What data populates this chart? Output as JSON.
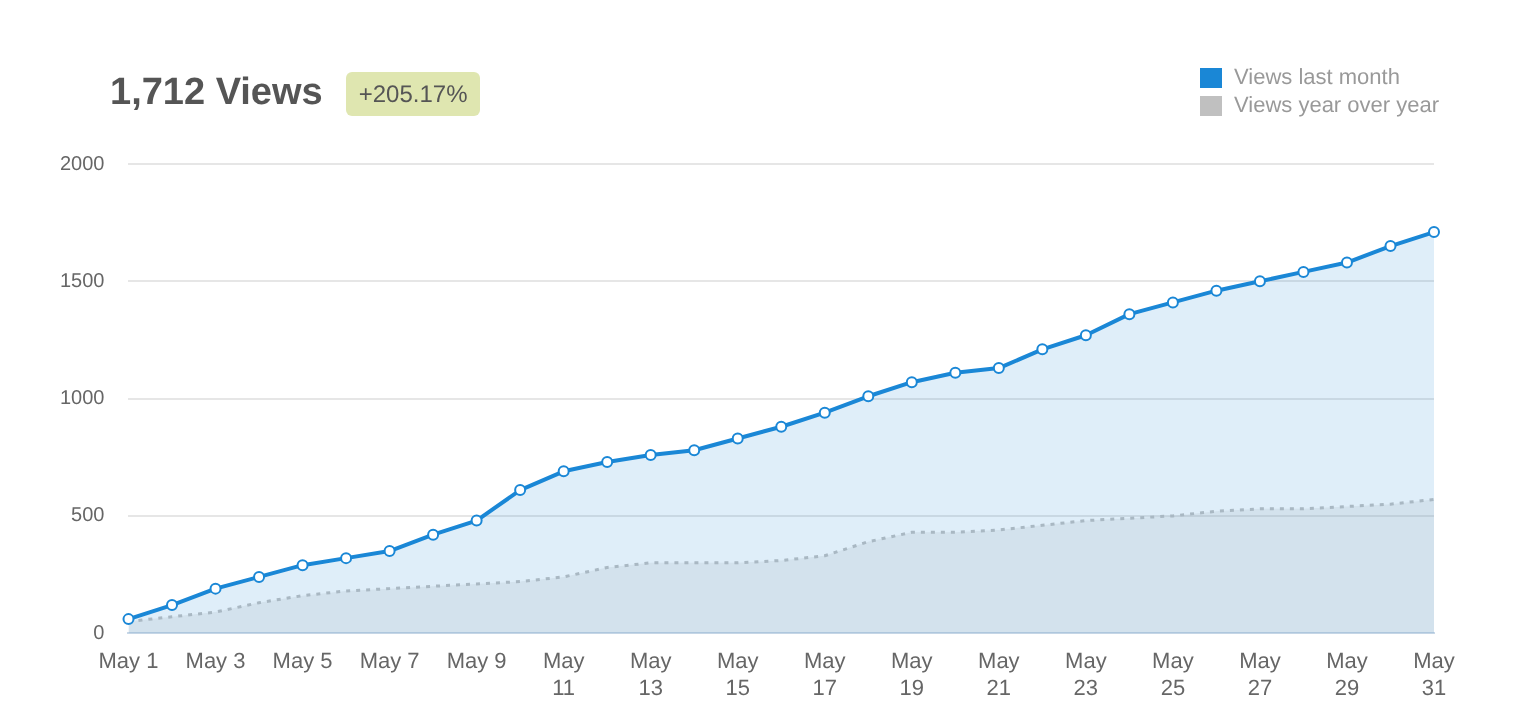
{
  "chart_data": {
    "type": "area",
    "title": "1,712 Views",
    "subtitle": "+205.17%",
    "categories": [
      "May 1",
      null,
      "May 3",
      null,
      "May 5",
      null,
      "May 7",
      null,
      "May 9",
      null,
      "May 11",
      null,
      "May 13",
      null,
      "May 15",
      null,
      "May 17",
      null,
      "May 19",
      null,
      "May 21",
      null,
      "May 23",
      null,
      "May 25",
      null,
      "May 27",
      null,
      "May 29",
      null,
      "May 31"
    ],
    "series": [
      {
        "name": "Views last month",
        "color": "#1a87d6",
        "marker": "circle",
        "line_style": "solid",
        "values": [
          60,
          120,
          190,
          240,
          290,
          320,
          350,
          420,
          480,
          610,
          690,
          730,
          760,
          780,
          830,
          880,
          940,
          1010,
          1070,
          1110,
          1130,
          1210,
          1270,
          1360,
          1410,
          1460,
          1500,
          1540,
          1580,
          1650,
          1710
        ]
      },
      {
        "name": "Views year over year",
        "color": "#c0c0c0",
        "marker": "none",
        "line_style": "dotted",
        "values": [
          50,
          70,
          90,
          130,
          160,
          180,
          190,
          200,
          210,
          220,
          240,
          280,
          300,
          300,
          300,
          310,
          330,
          390,
          430,
          430,
          440,
          460,
          480,
          490,
          500,
          520,
          530,
          530,
          540,
          550,
          570
        ]
      }
    ],
    "ylim": [
      0,
      2000
    ],
    "yticks": [
      0,
      500,
      1000,
      1500,
      2000
    ],
    "grid": "y",
    "legend": "top right"
  }
}
